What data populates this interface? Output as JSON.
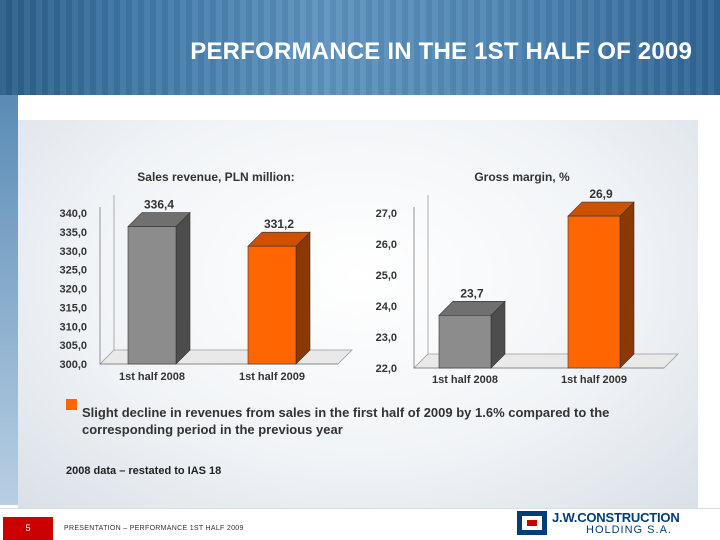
{
  "header": {
    "title": "PERFORMANCE IN THE 1ST HALF OF 2009"
  },
  "chart_data": [
    {
      "type": "bar",
      "title": "Sales revenue, PLN million:",
      "categories": [
        "1st half 2008",
        "1st half 2009"
      ],
      "values": [
        336.4,
        331.2
      ],
      "data_labels": [
        "336,4",
        "331,2"
      ],
      "ylim": [
        300,
        340
      ],
      "yticks": [
        "300,0",
        "305,0",
        "310,0",
        "315,0",
        "320,0",
        "325,0",
        "330,0",
        "335,0",
        "340,0"
      ],
      "colors": [
        "#8c8c8c",
        "#ff6600"
      ],
      "grid": false,
      "style": "3d"
    },
    {
      "type": "bar",
      "title": "Gross margin, %",
      "categories": [
        "1st half 2008",
        "1st half 2009"
      ],
      "values": [
        23.7,
        26.9
      ],
      "data_labels": [
        "23,7",
        "26,9"
      ],
      "ylim": [
        22,
        27
      ],
      "yticks": [
        "22,0",
        "23,0",
        "24,0",
        "25,0",
        "26,0",
        "27,0"
      ],
      "colors": [
        "#8c8c8c",
        "#ff6600"
      ],
      "grid": false,
      "style": "3d"
    }
  ],
  "bullet": {
    "color": "#ff6600",
    "text": "Slight decline in revenues from sales in the first half of 2009 by 1.6% compared to the corresponding period in the previous year"
  },
  "note": "2008 data – restated to IAS 18",
  "footer": {
    "page_number": "5",
    "text": "PRESENTATION – PERFORMANCE 1ST HALF 2009",
    "logo_line1": "J.W.CONSTRUCTION",
    "logo_line2": "HOLDING S.A."
  }
}
